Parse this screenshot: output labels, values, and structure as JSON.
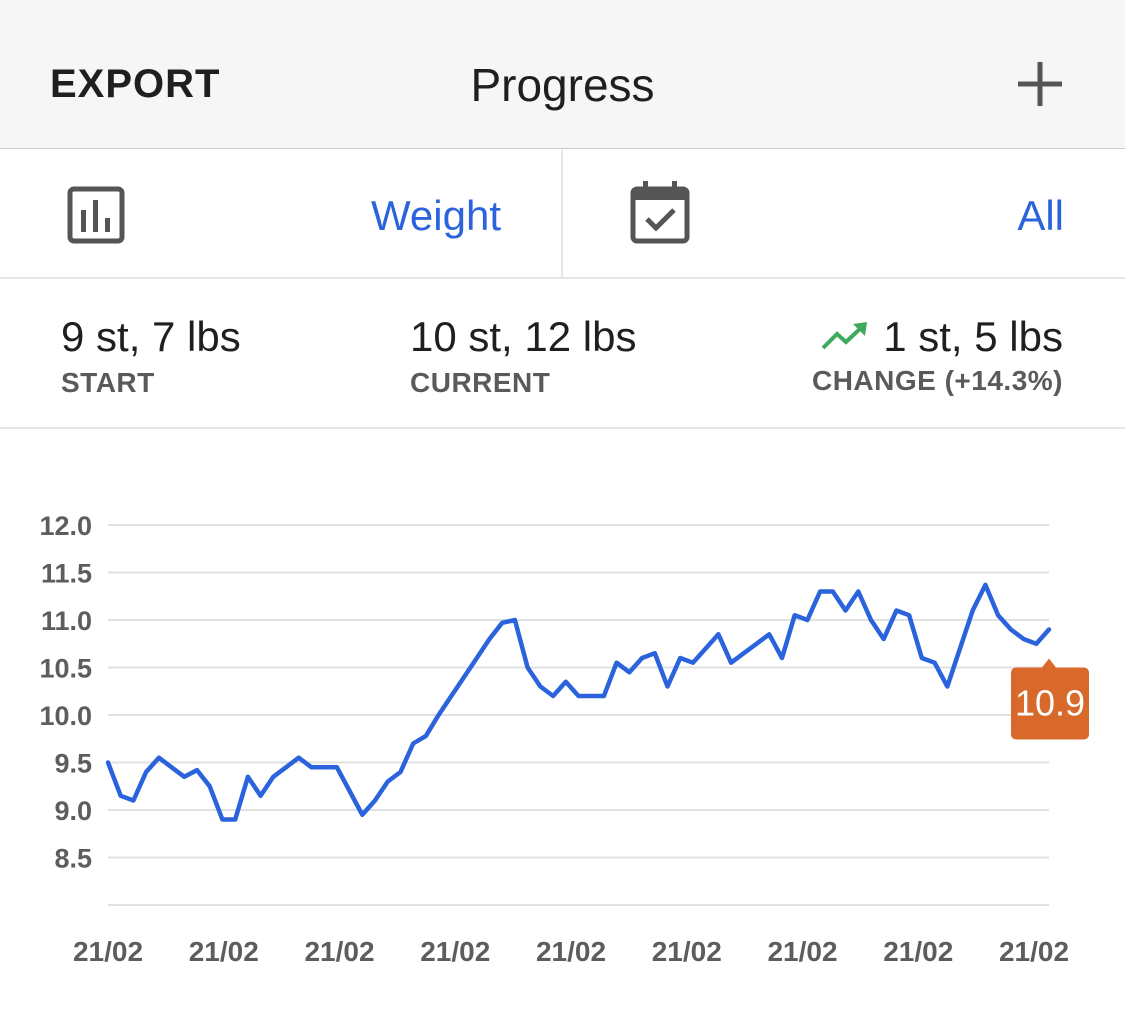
{
  "header": {
    "export_label": "EXPORT",
    "title": "Progress",
    "add_icon": "plus-icon"
  },
  "selectors": {
    "metric_icon": "bar-chart-icon",
    "metric_value": "Weight",
    "range_icon": "calendar-check-icon",
    "range_value": "All"
  },
  "stats": {
    "start": {
      "value": "9 st, 7 lbs",
      "label": "START"
    },
    "current": {
      "value": "10 st, 12 lbs",
      "label": "CURRENT"
    },
    "change": {
      "value": "1 st, 5 lbs",
      "label": "CHANGE (+14.3%)",
      "icon": "trend-up-icon",
      "icon_color": "#3dab5b"
    }
  },
  "colors": {
    "accent": "#2a63dc",
    "line": "#2a63dc",
    "tooltip": "#d9692b",
    "trend_up": "#3dab5b"
  },
  "chart_data": {
    "type": "line",
    "title": "",
    "xlabel": "",
    "ylabel": "",
    "ylim": [
      8.0,
      12.0
    ],
    "yticks": [
      "12.0",
      "11.5",
      "11.0",
      "10.5",
      "10.0",
      "9.5",
      "9.0",
      "8.5"
    ],
    "xtick_labels": [
      "21/02",
      "21/02",
      "21/02",
      "21/02",
      "21/02",
      "21/02",
      "21/02",
      "21/02",
      "21/02"
    ],
    "grid": true,
    "tooltip": {
      "label": "10.9",
      "value": 10.9
    },
    "series": [
      {
        "values": [
          9.5,
          9.15,
          9.1,
          9.4,
          9.55,
          9.45,
          9.35,
          9.42,
          9.25,
          8.9,
          8.9,
          9.35,
          9.15,
          9.35,
          9.45,
          9.55,
          9.45,
          9.45,
          9.45,
          9.2,
          8.95,
          9.1,
          9.3,
          9.4,
          9.7,
          9.78,
          10.0,
          10.2,
          10.4,
          10.6,
          10.8,
          10.97,
          11.0,
          10.5,
          10.3,
          10.2,
          10.35,
          10.2,
          10.2,
          10.2,
          10.55,
          10.45,
          10.6,
          10.65,
          10.3,
          10.6,
          10.55,
          10.7,
          10.85,
          10.55,
          10.65,
          10.75,
          10.85,
          10.6,
          11.05,
          11.0,
          11.3,
          11.3,
          11.1,
          11.3,
          11.0,
          10.8,
          11.1,
          11.05,
          10.6,
          10.55,
          10.3,
          10.7,
          11.1,
          11.37,
          11.05,
          10.9,
          10.8,
          10.75,
          10.9
        ]
      }
    ]
  }
}
